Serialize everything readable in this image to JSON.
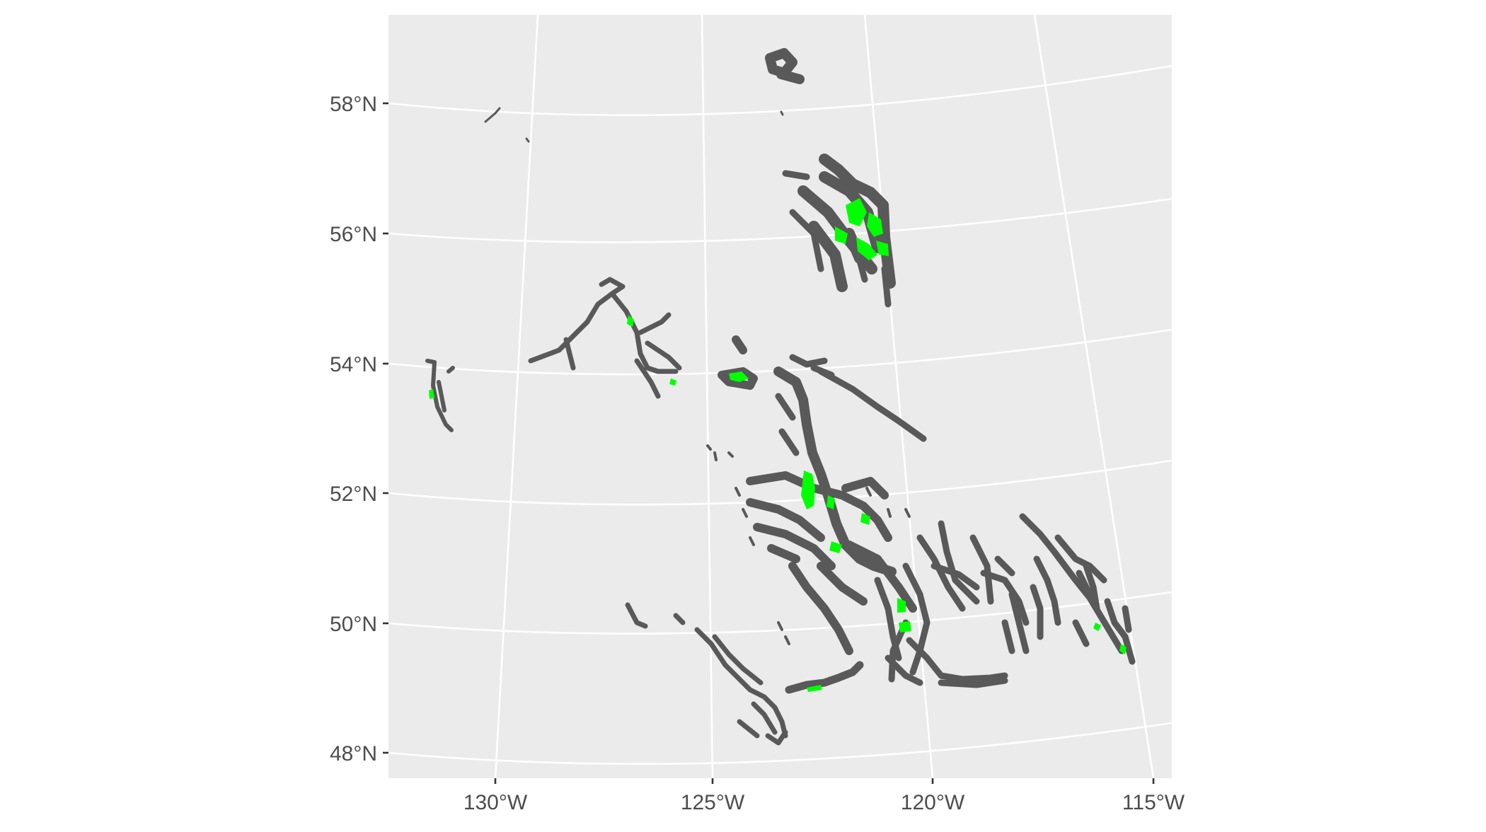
{
  "map": {
    "panel_background": "#ebebeb",
    "graticule_color": "#ffffff",
    "feature_outline_color": "#595959",
    "feature_fill_color": "#00ff00",
    "y_ticks": [
      "58°N",
      "56°N",
      "54°N",
      "52°N",
      "50°N",
      "48°N"
    ],
    "x_ticks": [
      "130°W",
      "125°W",
      "120°W",
      "115°W"
    ]
  }
}
